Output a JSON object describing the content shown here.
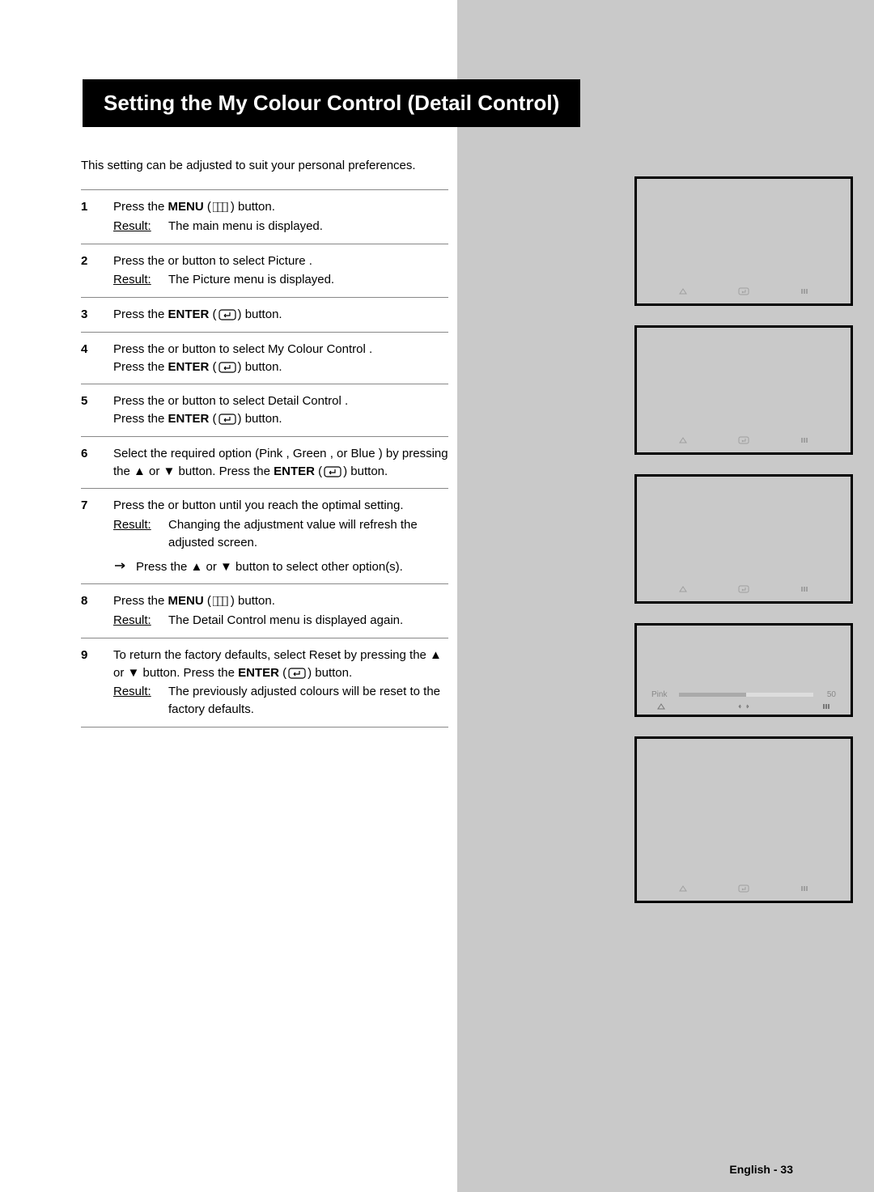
{
  "title": "Setting the My Colour Control (Detail Control)",
  "intro": "This setting can be adjusted to suit your personal preferences.",
  "steps": [
    {
      "num": "1",
      "lines": [
        {
          "type": "text",
          "parts": [
            {
              "t": "Press the "
            },
            {
              "t": "MENU",
              "bold": true
            },
            {
              "t": " ("
            },
            {
              "icon": "menu"
            },
            {
              "t": ") button."
            }
          ]
        },
        {
          "type": "result",
          "text": "The main menu is displayed."
        }
      ]
    },
    {
      "num": "2",
      "lines": [
        {
          "type": "text",
          "parts": [
            {
              "t": "Press the    or    button to select "
            },
            {
              "t": "Picture"
            },
            {
              "t": "   ."
            }
          ]
        },
        {
          "type": "result",
          "text_parts": [
            {
              "t": "The "
            },
            {
              "t": "Picture"
            },
            {
              "t": "   menu is displayed."
            }
          ]
        }
      ]
    },
    {
      "num": "3",
      "lines": [
        {
          "type": "text",
          "parts": [
            {
              "t": "Press the "
            },
            {
              "t": "ENTER",
              "bold": true
            },
            {
              "t": " ("
            },
            {
              "icon": "enter"
            },
            {
              "t": ") button."
            }
          ]
        }
      ]
    },
    {
      "num": "4",
      "lines": [
        {
          "type": "text",
          "parts": [
            {
              "t": "Press the    or    button to select "
            },
            {
              "t": "My Colour Control"
            },
            {
              "t": "   ."
            }
          ]
        },
        {
          "type": "text",
          "parts": [
            {
              "t": "Press the "
            },
            {
              "t": "ENTER",
              "bold": true
            },
            {
              "t": " ("
            },
            {
              "icon": "enter"
            },
            {
              "t": ") button."
            }
          ]
        }
      ]
    },
    {
      "num": "5",
      "lines": [
        {
          "type": "text",
          "parts": [
            {
              "t": "Press the    or    button to select "
            },
            {
              "t": "Detail Control"
            },
            {
              "t": "   ."
            }
          ]
        },
        {
          "type": "text",
          "parts": [
            {
              "t": "Press the "
            },
            {
              "t": "ENTER",
              "bold": true
            },
            {
              "t": " ("
            },
            {
              "icon": "enter"
            },
            {
              "t": ") button."
            }
          ]
        }
      ]
    },
    {
      "num": "6",
      "lines": [
        {
          "type": "text",
          "parts": [
            {
              "t": "Select the required option ("
            },
            {
              "t": "Pink"
            },
            {
              "t": " , "
            },
            {
              "t": "Green"
            },
            {
              "t": " , or "
            },
            {
              "t": "Blue"
            },
            {
              "t": " ) by pressing the ▲ or ▼ button. Press the "
            },
            {
              "t": "ENTER",
              "bold": true
            },
            {
              "t": " ("
            },
            {
              "icon": "enter"
            },
            {
              "t": ") button."
            }
          ]
        }
      ]
    },
    {
      "num": "7",
      "lines": [
        {
          "type": "text",
          "parts": [
            {
              "t": "Press the    or    button until you reach the optimal setting."
            }
          ]
        },
        {
          "type": "result",
          "text": "Changing the adjustment value will refresh the adjusted screen."
        },
        {
          "type": "note",
          "text": "Press the ▲ or ▼ button to select other option(s)."
        }
      ]
    },
    {
      "num": "8",
      "lines": [
        {
          "type": "text",
          "parts": [
            {
              "t": "Press the "
            },
            {
              "t": "MENU",
              "bold": true
            },
            {
              "t": " ("
            },
            {
              "icon": "menu"
            },
            {
              "t": ") button."
            }
          ]
        },
        {
          "type": "result",
          "text_parts": [
            {
              "t": "The "
            },
            {
              "t": "Detail Control"
            },
            {
              "t": "      menu is displayed again."
            }
          ]
        }
      ]
    },
    {
      "num": "9",
      "lines": [
        {
          "type": "text",
          "parts": [
            {
              "t": "To return the factory defaults, select "
            },
            {
              "t": "Reset"
            },
            {
              "t": "  by pressing the ▲ or ▼ button. Press the "
            },
            {
              "t": "ENTER",
              "bold": true
            },
            {
              "t": " ("
            },
            {
              "icon": "enter"
            },
            {
              "t": ") button."
            }
          ]
        },
        {
          "type": "result",
          "text": "The previously adjusted colours will be reset to the factory defaults."
        }
      ]
    }
  ],
  "result_label": "Result:",
  "figures": {
    "slider": {
      "label": "Pink",
      "value": "50"
    }
  },
  "footer": {
    "lang": "English - ",
    "page": "33"
  }
}
